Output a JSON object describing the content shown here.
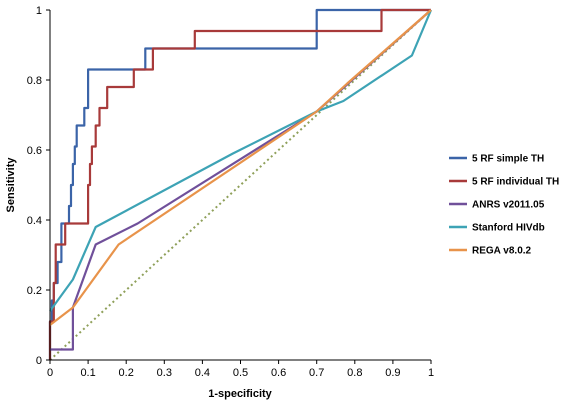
{
  "chart_data": {
    "type": "line",
    "title": "",
    "xlabel": "1-specificity",
    "ylabel": "Sensitivity",
    "xlim": [
      0,
      1
    ],
    "ylim": [
      0,
      1
    ],
    "x_ticks": [
      "0",
      "0.1",
      "0.2",
      "0.3",
      "0.4",
      "0.5",
      "0.6",
      "0.7",
      "0.8",
      "0.9",
      "1"
    ],
    "y_ticks": [
      "0",
      "0.2",
      "0.4",
      "0.6",
      "0.8",
      "1"
    ],
    "grid": false,
    "legend_position": "right",
    "series": [
      {
        "name": "5 RF simple TH",
        "color": "#3B64A8",
        "step": true,
        "points": [
          [
            0,
            0
          ],
          [
            0,
            0.11
          ],
          [
            0.005,
            0.11
          ],
          [
            0.005,
            0.17
          ],
          [
            0.01,
            0.17
          ],
          [
            0.01,
            0.22
          ],
          [
            0.02,
            0.22
          ],
          [
            0.02,
            0.28
          ],
          [
            0.03,
            0.28
          ],
          [
            0.03,
            0.33
          ],
          [
            0.03,
            0.39
          ],
          [
            0.05,
            0.39
          ],
          [
            0.05,
            0.44
          ],
          [
            0.055,
            0.44
          ],
          [
            0.055,
            0.5
          ],
          [
            0.06,
            0.5
          ],
          [
            0.06,
            0.56
          ],
          [
            0.065,
            0.56
          ],
          [
            0.065,
            0.61
          ],
          [
            0.07,
            0.61
          ],
          [
            0.07,
            0.67
          ],
          [
            0.09,
            0.67
          ],
          [
            0.09,
            0.72
          ],
          [
            0.1,
            0.72
          ],
          [
            0.1,
            0.83
          ],
          [
            0.25,
            0.83
          ],
          [
            0.25,
            0.89
          ],
          [
            0.7,
            0.89
          ],
          [
            0.7,
            1
          ],
          [
            1,
            1
          ]
        ]
      },
      {
        "name": "5 RF individual TH",
        "color": "#A83A3A",
        "step": true,
        "points": [
          [
            0,
            0
          ],
          [
            0,
            0.11
          ],
          [
            0.01,
            0.11
          ],
          [
            0.01,
            0.22
          ],
          [
            0.015,
            0.22
          ],
          [
            0.015,
            0.33
          ],
          [
            0.04,
            0.33
          ],
          [
            0.04,
            0.39
          ],
          [
            0.1,
            0.39
          ],
          [
            0.1,
            0.5
          ],
          [
            0.105,
            0.5
          ],
          [
            0.105,
            0.56
          ],
          [
            0.11,
            0.56
          ],
          [
            0.11,
            0.61
          ],
          [
            0.12,
            0.61
          ],
          [
            0.12,
            0.67
          ],
          [
            0.13,
            0.67
          ],
          [
            0.13,
            0.72
          ],
          [
            0.15,
            0.72
          ],
          [
            0.15,
            0.78
          ],
          [
            0.22,
            0.78
          ],
          [
            0.22,
            0.83
          ],
          [
            0.27,
            0.83
          ],
          [
            0.27,
            0.89
          ],
          [
            0.38,
            0.89
          ],
          [
            0.38,
            0.94
          ],
          [
            0.87,
            0.94
          ],
          [
            0.87,
            1
          ],
          [
            1,
            1
          ]
        ]
      },
      {
        "name": "ANRS v2011.05",
        "color": "#70509A",
        "step": false,
        "points": [
          [
            0,
            0.03
          ],
          [
            0.06,
            0.03
          ],
          [
            0.06,
            0.15
          ],
          [
            0.12,
            0.33
          ],
          [
            0.23,
            0.39
          ],
          [
            0.7,
            0.71
          ],
          [
            1,
            1
          ]
        ]
      },
      {
        "name": "Stanford HIVdb",
        "color": "#3DA3B5",
        "step": false,
        "points": [
          [
            0,
            0.14
          ],
          [
            0.06,
            0.23
          ],
          [
            0.12,
            0.38
          ],
          [
            0.48,
            0.59
          ],
          [
            0.7,
            0.71
          ],
          [
            0.77,
            0.74
          ],
          [
            0.95,
            0.87
          ],
          [
            1,
            1
          ]
        ]
      },
      {
        "name": "REGA v8.0.2",
        "color": "#E8934A",
        "step": false,
        "points": [
          [
            0,
            0.1
          ],
          [
            0.06,
            0.15
          ],
          [
            0.18,
            0.33
          ],
          [
            0.7,
            0.71
          ],
          [
            0.78,
            0.79
          ],
          [
            1,
            1
          ]
        ]
      },
      {
        "name": "",
        "color": "#8FA05A",
        "dashed": true,
        "step": false,
        "points": [
          [
            0,
            0
          ],
          [
            1,
            1
          ]
        ]
      }
    ]
  }
}
